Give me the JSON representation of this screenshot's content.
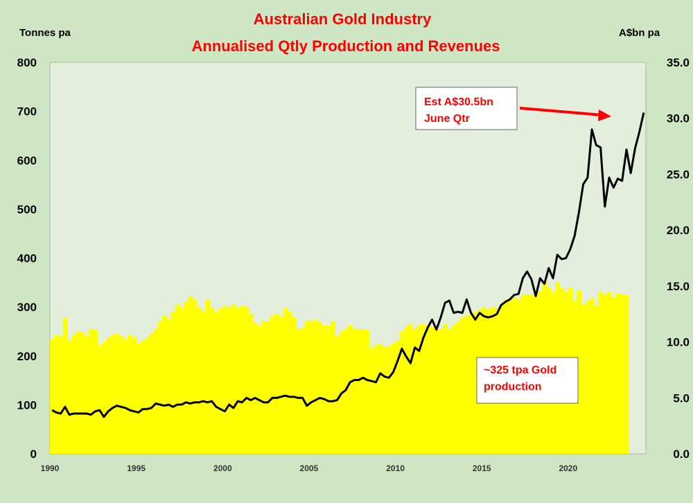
{
  "chart_data": {
    "type": "bar+line",
    "title": "Australian Gold Industry",
    "subtitle": "Annualised Qtly Production and Revenues",
    "ylabel_left": "Tonnes pa",
    "ylabel_right": "A$bn pa",
    "ylim_left": [
      0,
      800
    ],
    "ylim_right": [
      0,
      35
    ],
    "xlim": [
      1990,
      2024.5
    ],
    "yticks_left": [
      "0",
      "100",
      "200",
      "300",
      "400",
      "500",
      "600",
      "700",
      "800"
    ],
    "yticks_right": [
      "0.0",
      "5.0",
      "10.0",
      "15.0",
      "20.0",
      "25.0",
      "30.0",
      "35.0"
    ],
    "xticks": [
      "1990",
      "1995",
      "2000",
      "2005",
      "2010",
      "2015",
      "2020"
    ],
    "x_start": 1990.0,
    "x_step": 0.25,
    "grid": false,
    "colors": {
      "production": "#ffff00",
      "revenue": "#000000",
      "plot_bg": "#e3efdc",
      "page_bg": "#cfe6c4",
      "annotation": "#ff0000"
    },
    "series": [
      {
        "name": "Gold production",
        "axis": "left",
        "type": "area-bar",
        "values": [
          235,
          243,
          240,
          278,
          231,
          243,
          250,
          248,
          240,
          255,
          253,
          222,
          228,
          238,
          243,
          245,
          240,
          235,
          243,
          238,
          225,
          232,
          238,
          245,
          255,
          270,
          282,
          275,
          290,
          305,
          300,
          310,
          322,
          315,
          300,
          290,
          315,
          298,
          290,
          298,
          303,
          298,
          305,
          298,
          302,
          300,
          286,
          268,
          262,
          272,
          270,
          282,
          285,
          280,
          298,
          290,
          280,
          255,
          258,
          272,
          272,
          273,
          268,
          262,
          262,
          272,
          240,
          250,
          255,
          262,
          255,
          255,
          255,
          253,
          216,
          222,
          224,
          218,
          220,
          225,
          232,
          250,
          260,
          265,
          255,
          262,
          265,
          262,
          260,
          255,
          255,
          265,
          255,
          262,
          270,
          278,
          282,
          285,
          290,
          295,
          300,
          295,
          300,
          298,
          305,
          315,
          315,
          320,
          315,
          325,
          325,
          325,
          322,
          332,
          352,
          340,
          330,
          350,
          340,
          330,
          340,
          312,
          333,
          305,
          312,
          318,
          302,
          330,
          325,
          330,
          320,
          328,
          326,
          325
        ]
      },
      {
        "name": "Revenue",
        "axis": "right",
        "type": "line",
        "values": [
          3.9,
          3.7,
          3.6,
          4.2,
          3.5,
          3.6,
          3.6,
          3.6,
          3.6,
          3.5,
          3.8,
          3.9,
          3.3,
          3.8,
          4.1,
          4.3,
          4.2,
          4.1,
          3.9,
          3.8,
          3.7,
          4.0,
          4.0,
          4.1,
          4.5,
          4.4,
          4.3,
          4.4,
          4.2,
          4.4,
          4.4,
          4.6,
          4.5,
          4.6,
          4.6,
          4.7,
          4.6,
          4.7,
          4.2,
          4.0,
          3.8,
          4.4,
          4.1,
          4.7,
          4.6,
          5.0,
          4.8,
          5.0,
          4.8,
          4.6,
          4.6,
          5.0,
          5.0,
          5.1,
          5.2,
          5.1,
          5.1,
          5.0,
          5.0,
          4.3,
          4.6,
          4.8,
          5.0,
          4.9,
          4.7,
          4.7,
          4.8,
          5.4,
          5.7,
          6.4,
          6.6,
          6.6,
          6.8,
          6.6,
          6.5,
          6.4,
          7.2,
          6.9,
          6.8,
          7.3,
          8.3,
          9.4,
          8.7,
          8.1,
          9.5,
          9.2,
          10.4,
          11.3,
          12.0,
          11.1,
          12.2,
          13.5,
          13.7,
          12.6,
          12.7,
          12.6,
          13.8,
          12.6,
          12.0,
          12.6,
          12.3,
          12.2,
          12.3,
          12.5,
          13.3,
          13.6,
          13.8,
          14.2,
          14.3,
          15.7,
          16.3,
          15.6,
          14.1,
          15.7,
          15.2,
          16.6,
          15.7,
          17.8,
          17.4,
          17.5,
          18.3,
          19.5,
          21.6,
          24.1,
          24.7,
          29.0,
          27.6,
          27.4,
          22.1,
          24.7,
          23.8,
          24.6,
          24.4,
          27.2,
          25.1,
          27.3,
          28.8,
          30.5
        ]
      }
    ],
    "annotations": [
      {
        "lines": [
          "Est A$30.5bn",
          "June Qtr"
        ],
        "color": "#ff0000",
        "points_to": "last revenue value"
      },
      {
        "lines": [
          "~325 tpa Gold",
          "production"
        ],
        "color": "#ff0000"
      }
    ]
  }
}
